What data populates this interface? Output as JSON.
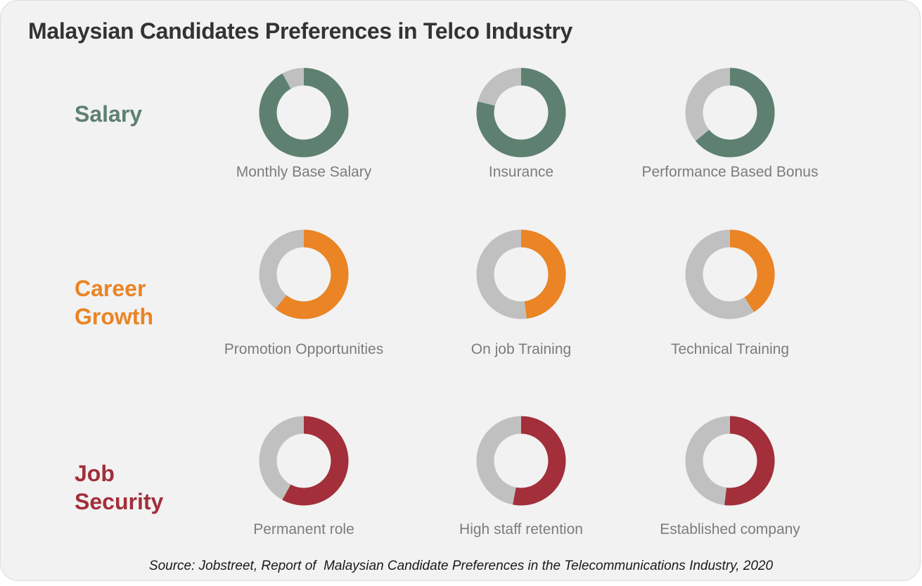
{
  "title": "Malaysian Candidates Preferences in Telco Industry",
  "source": "Source: Jobstreet, Report of  Malaysian Candidate Preferences in the Telecommunications Industry, 2020",
  "colors": {
    "remainder": "#c0c0c0",
    "background": "#f2f2f2"
  },
  "chart_data": {
    "type": "pie",
    "variant": "donut",
    "title": "Malaysian Candidates Preferences in Telco Industry",
    "groups": [
      {
        "label": "Salary",
        "color": "#5e8070",
        "items": [
          {
            "label": "Monthly Base Salary",
            "value": 0.92
          },
          {
            "label": "Insurance",
            "value": 0.79
          },
          {
            "label": "Performance Based Bonus",
            "value": 0.64
          }
        ]
      },
      {
        "label": "Career\nGrowth",
        "color": "#ea8424",
        "items": [
          {
            "label": "Promotion Opportunities",
            "value": 0.61
          },
          {
            "label": "On job Training",
            "value": 0.48
          },
          {
            "label": "Technical Training",
            "value": 0.41
          }
        ]
      },
      {
        "label": "Job\nSecurity",
        "color": "#a22f3a",
        "items": [
          {
            "label": "Permanent role",
            "value": 0.58
          },
          {
            "label": "High staff retention",
            "value": 0.53
          },
          {
            "label": "Established company",
            "value": 0.52
          }
        ]
      }
    ]
  }
}
